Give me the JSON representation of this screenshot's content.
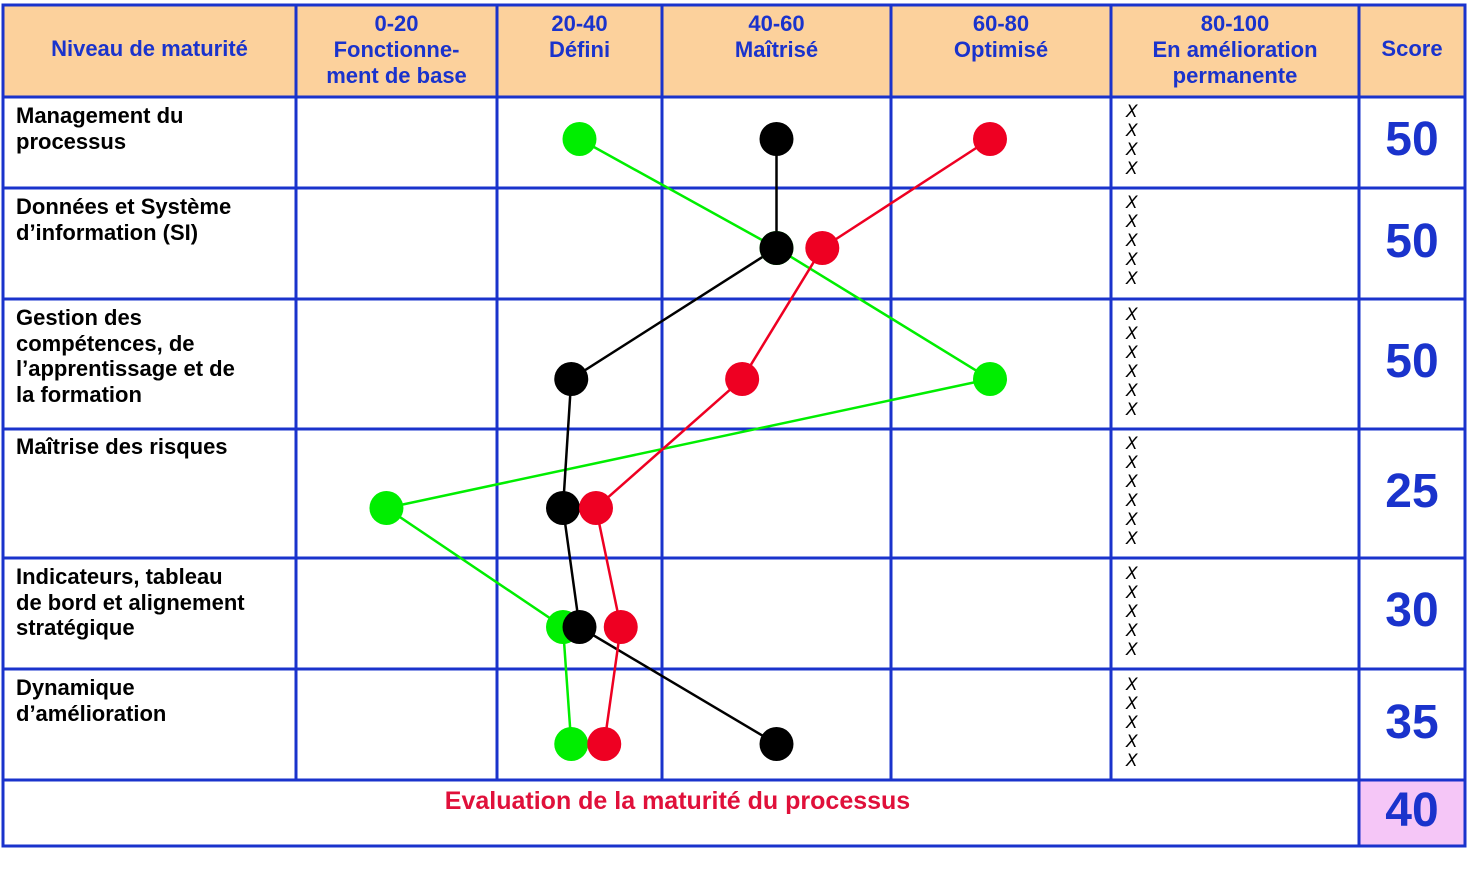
{
  "header": {
    "row_header": "Niveau de maturité",
    "columns": [
      {
        "range": "0-20",
        "label": "Fonctionne-\nment de base"
      },
      {
        "range": "20-40",
        "label": "Défini"
      },
      {
        "range": "40-60",
        "label": "Maîtrisé"
      },
      {
        "range": "60-80",
        "label": "Optimisé"
      },
      {
        "range": "80-100",
        "label": "En amélioration\npermanente"
      }
    ],
    "score_header": "Score"
  },
  "rows": [
    {
      "label": "Management du\nprocessus",
      "score": "50",
      "marks": "X\nX\nX\nX"
    },
    {
      "label": "Données et Système\nd’information  (SI)",
      "score": "50",
      "marks": "X\nX\nX\nX\nX"
    },
    {
      "label": "Gestion des\ncompétences, de\nl’apprentissage et de\nla formation",
      "score": "50",
      "marks": "X\nX\nX\nX\nX\nX"
    },
    {
      "label": "Maîtrise des risques",
      "score": "25",
      "marks": "X\nX\nX\nX\nX\nX"
    },
    {
      "label": "Indicateurs, tableau\nde bord et alignement\nstratégique",
      "score": "30",
      "marks": "X\nX\nX\nX\nX"
    },
    {
      "label": "Dynamique\nd’amélioration",
      "score": "35",
      "marks": "X\nX\nX\nX\nX"
    }
  ],
  "footer": {
    "label": "Evaluation de la maturité du processus",
    "score": "40"
  },
  "colors": {
    "border": "#1a33cc",
    "header_bg": "#fcd19c",
    "total_bg": "#f5c6f7",
    "label_blue": "#1a33cc",
    "footer_red": "#e0103a"
  },
  "chart_data": {
    "type": "line",
    "orientation": "horizontal",
    "categories": [
      "Management du processus",
      "Données et Système d’information (SI)",
      "Gestion des compétences, de l’apprentissage et de la formation",
      "Maîtrise des risques",
      "Indicateurs, tableau de bord et alignement stratégique",
      "Dynamique d’amélioration"
    ],
    "xlim": [
      0,
      100
    ],
    "series": [
      {
        "color": "#00ee00",
        "values": [
          30,
          50,
          69,
          9,
          28,
          29
        ]
      },
      {
        "color": "#000000",
        "values": [
          50,
          50,
          29,
          28,
          30,
          50
        ]
      },
      {
        "color": "#ee0022",
        "values": [
          69,
          54,
          47,
          32,
          35,
          33
        ]
      }
    ]
  }
}
